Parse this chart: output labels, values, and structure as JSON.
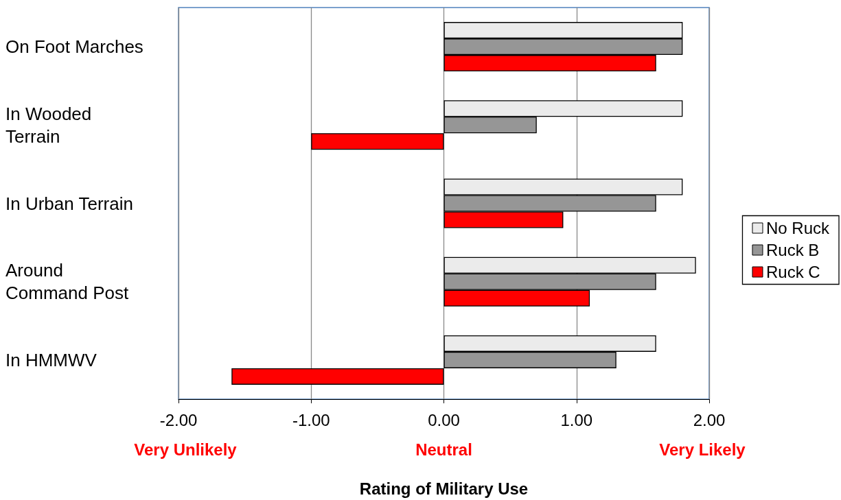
{
  "chart_data": {
    "type": "bar",
    "orientation": "horizontal",
    "xlabel": "Rating of Military Use",
    "categories": [
      "On Foot Marches",
      "In Wooded Terrain",
      "In Urban Terrain",
      "Around Command Post",
      "In HMMWV"
    ],
    "series": [
      {
        "name": "No Ruck",
        "color": "#ebebeb",
        "values": [
          1.8,
          1.8,
          1.8,
          1.9,
          1.6
        ]
      },
      {
        "name": "Ruck B",
        "color": "#969696",
        "values": [
          1.8,
          0.7,
          1.6,
          1.6,
          1.3
        ]
      },
      {
        "name": "Ruck C",
        "color": "#ff0000",
        "values": [
          1.6,
          -1.0,
          0.9,
          1.1,
          -1.6
        ]
      }
    ],
    "xlim": [
      -2,
      2
    ],
    "xticks": [
      {
        "value": -2,
        "label": "-2.00"
      },
      {
        "value": -1,
        "label": "-1.00"
      },
      {
        "value": 0,
        "label": "0.00"
      },
      {
        "value": 1,
        "label": "1.00"
      },
      {
        "value": 2,
        "label": "2.00"
      }
    ],
    "annotations": [
      "Very Unlikely",
      "Neutral",
      "Very Likely"
    ],
    "grid": "x",
    "legend": "right"
  }
}
